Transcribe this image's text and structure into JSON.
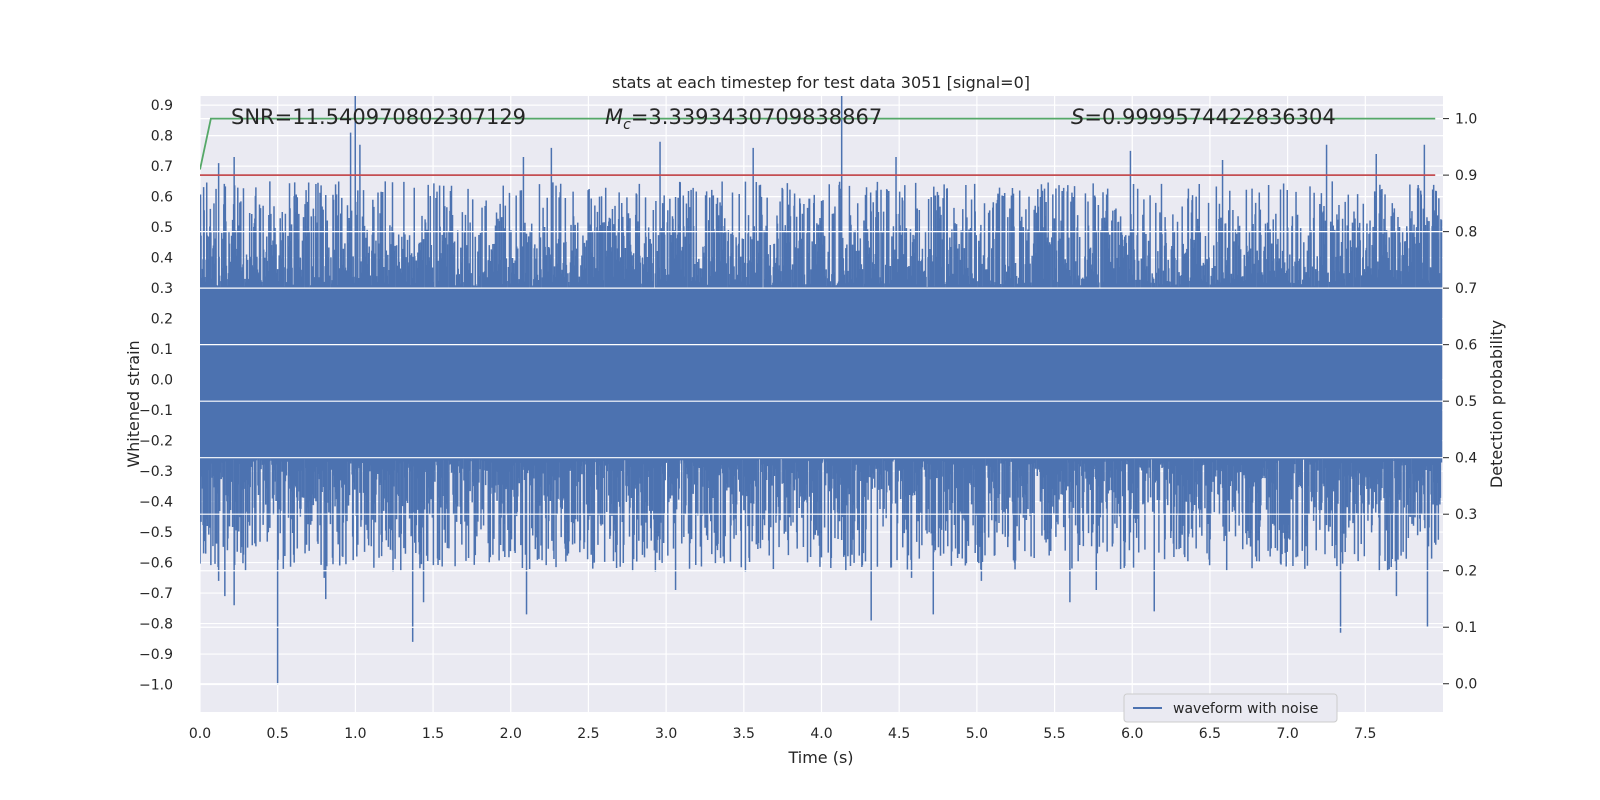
{
  "chart_data": {
    "type": "line",
    "title": "stats at each timestep for test data 3051 [signal=0]",
    "xlabel": "Time (s)",
    "ylabel": "Whitened strain",
    "y2label": "Detection probability",
    "xlim": [
      0.0,
      8.0
    ],
    "ylim": [
      -1.09,
      0.93
    ],
    "y2lim": [
      -0.05,
      1.04
    ],
    "xticks": [
      0.0,
      0.5,
      1.0,
      1.5,
      2.0,
      2.5,
      3.0,
      3.5,
      4.0,
      4.5,
      5.0,
      5.5,
      6.0,
      6.5,
      7.0,
      7.5
    ],
    "xtick_labels": [
      "0.0",
      "0.5",
      "1.0",
      "1.5",
      "2.0",
      "2.5",
      "3.0",
      "3.5",
      "4.0",
      "4.5",
      "5.0",
      "5.5",
      "6.0",
      "6.5",
      "7.0",
      "7.5"
    ],
    "yticks": [
      0.9,
      0.8,
      0.7,
      0.6,
      0.5,
      0.4,
      0.3,
      0.2,
      0.1,
      0.0,
      -0.1,
      -0.2,
      -0.3,
      -0.4,
      -0.5,
      -0.6,
      -0.7,
      -0.8,
      -0.9,
      -1.0
    ],
    "ytick_labels": [
      "0.9",
      "0.8",
      "0.7",
      "0.6",
      "0.5",
      "0.4",
      "0.3",
      "0.2",
      "0.1",
      "0.0",
      "−0.1",
      "−0.2",
      "−0.3",
      "−0.4",
      "−0.5",
      "−0.6",
      "−0.7",
      "−0.8",
      "−0.9",
      "−1.0"
    ],
    "y2ticks": [
      1.0,
      0.9,
      0.8,
      0.7,
      0.6,
      0.5,
      0.4,
      0.3,
      0.2,
      0.1,
      0.0
    ],
    "y2tick_labels": [
      "1.0",
      "0.9",
      "0.8",
      "0.7",
      "0.6",
      "0.5",
      "0.4",
      "0.3",
      "0.2",
      "0.1",
      "0.0"
    ],
    "grid": true,
    "legend_position": "bottom-right",
    "annotations": {
      "snr": "SNR=11.540970802307129",
      "mc_symbol": "M",
      "mc_sub": "c",
      "mc_value": "=3.3393430709838867",
      "s_symbol": "S",
      "s_value": "=0.9999574422836304"
    },
    "series": [
      {
        "name": "waveform with noise",
        "axis": "left",
        "color": "#4c72b0",
        "kind": "noise",
        "x_range": [
          0.0,
          7.99
        ],
        "envelope_typical": [
          -0.45,
          0.5
        ],
        "peaks_positive": [
          [
            0.12,
            0.71
          ],
          [
            0.22,
            0.73
          ],
          [
            0.97,
            0.81
          ],
          [
            1.0,
            0.93
          ],
          [
            1.03,
            0.77
          ],
          [
            2.08,
            0.73
          ],
          [
            2.26,
            0.76
          ],
          [
            2.96,
            0.78
          ],
          [
            3.56,
            0.76
          ],
          [
            4.13,
            0.93
          ],
          [
            4.48,
            0.73
          ],
          [
            5.99,
            0.75
          ],
          [
            6.58,
            0.72
          ],
          [
            7.25,
            0.77
          ],
          [
            7.57,
            0.74
          ],
          [
            7.88,
            0.77
          ]
        ],
        "peaks_negative": [
          [
            0.12,
            -0.66
          ],
          [
            0.16,
            -0.71
          ],
          [
            0.22,
            -0.74
          ],
          [
            0.5,
            -1.0
          ],
          [
            0.8,
            -0.65
          ],
          [
            0.81,
            -0.72
          ],
          [
            1.37,
            -0.86
          ],
          [
            1.44,
            -0.73
          ],
          [
            2.1,
            -0.77
          ],
          [
            2.93,
            -0.63
          ],
          [
            3.06,
            -0.69
          ],
          [
            3.51,
            -0.63
          ],
          [
            4.32,
            -0.79
          ],
          [
            4.58,
            -0.65
          ],
          [
            4.72,
            -0.77
          ],
          [
            5.03,
            -0.66
          ],
          [
            5.6,
            -0.73
          ],
          [
            5.77,
            -0.69
          ],
          [
            6.14,
            -0.76
          ],
          [
            7.34,
            -0.83
          ],
          [
            7.7,
            -0.71
          ],
          [
            7.9,
            -0.81
          ]
        ]
      },
      {
        "name": "",
        "axis": "right",
        "color": "#55a868",
        "x": [
          0.0,
          0.07,
          0.1,
          7.95
        ],
        "y": [
          0.91,
          1.0,
          1.0,
          1.0
        ]
      },
      {
        "name": "",
        "axis": "right",
        "color": "#c44e52",
        "x": [
          0.0,
          7.95
        ],
        "y": [
          0.9,
          0.9
        ]
      }
    ]
  }
}
